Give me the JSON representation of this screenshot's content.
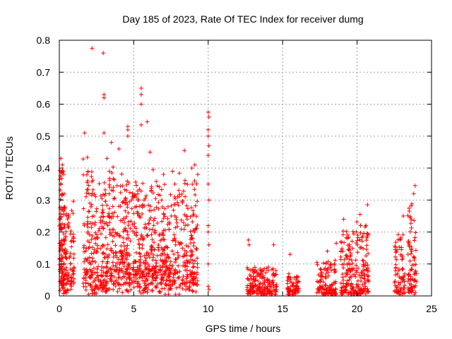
{
  "chart_data": {
    "type": "scatter",
    "title": "Day 185 of 2023, Rate Of TEC Index for receiver dumg",
    "xlabel": "GPS time / hours",
    "ylabel": "ROTI / TECUs",
    "xlim": [
      0,
      25
    ],
    "ylim": [
      0,
      0.8
    ],
    "xticks": [
      0,
      5,
      10,
      15,
      20,
      25
    ],
    "yticks": [
      0,
      0.1,
      0.2,
      0.3,
      0.4,
      0.5,
      0.6,
      0.7,
      0.8
    ],
    "xtick_labels": [
      "0",
      "5",
      "10",
      "15",
      "20",
      "25"
    ],
    "ytick_labels": [
      "0",
      "0.1",
      "0.2",
      "0.3",
      "0.4",
      "0.5",
      "0.6",
      "0.7",
      "0.8"
    ],
    "grid": true,
    "marker": "+",
    "color": "#ff0000",
    "outliers": [
      {
        "x": 2.2,
        "y": 0.775
      },
      {
        "x": 2.95,
        "y": 0.76
      },
      {
        "x": 3.0,
        "y": 0.63
      },
      {
        "x": 3.0,
        "y": 0.62
      },
      {
        "x": 5.5,
        "y": 0.65
      },
      {
        "x": 5.5,
        "y": 0.63
      },
      {
        "x": 5.5,
        "y": 0.6
      },
      {
        "x": 5.9,
        "y": 0.545
      },
      {
        "x": 5.5,
        "y": 0.535
      },
      {
        "x": 1.7,
        "y": 0.51
      },
      {
        "x": 3.0,
        "y": 0.51
      },
      {
        "x": 4.6,
        "y": 0.53
      },
      {
        "x": 4.6,
        "y": 0.52
      },
      {
        "x": 4.6,
        "y": 0.5
      },
      {
        "x": 3.5,
        "y": 0.48
      },
      {
        "x": 4.0,
        "y": 0.46
      },
      {
        "x": 8.4,
        "y": 0.455
      },
      {
        "x": 6.1,
        "y": 0.45
      },
      {
        "x": 10.0,
        "y": 0.575
      },
      {
        "x": 10.05,
        "y": 0.56
      },
      {
        "x": 10.0,
        "y": 0.52
      },
      {
        "x": 10.0,
        "y": 0.5
      },
      {
        "x": 10.05,
        "y": 0.47
      },
      {
        "x": 10.0,
        "y": 0.44
      },
      {
        "x": 10.0,
        "y": 0.35
      },
      {
        "x": 10.05,
        "y": 0.3
      },
      {
        "x": 10.0,
        "y": 0.22
      },
      {
        "x": 10.0,
        "y": 0.2
      },
      {
        "x": 10.05,
        "y": 0.16
      },
      {
        "x": 10.0,
        "y": 0.1
      },
      {
        "x": 10.0,
        "y": 0.03
      },
      {
        "x": 10.05,
        "y": 0.02
      },
      {
        "x": 0.1,
        "y": 0.43
      },
      {
        "x": 0.2,
        "y": 0.41
      },
      {
        "x": 0.3,
        "y": 0.38
      },
      {
        "x": 12.7,
        "y": 0.175
      },
      {
        "x": 12.75,
        "y": 0.16
      },
      {
        "x": 14.4,
        "y": 0.16
      },
      {
        "x": 15.5,
        "y": 0.13
      },
      {
        "x": 18.0,
        "y": 0.14
      },
      {
        "x": 18.6,
        "y": 0.165
      },
      {
        "x": 19.1,
        "y": 0.24
      },
      {
        "x": 20.7,
        "y": 0.285
      },
      {
        "x": 20.2,
        "y": 0.255
      },
      {
        "x": 20.6,
        "y": 0.22
      },
      {
        "x": 23.1,
        "y": 0.25
      },
      {
        "x": 23.9,
        "y": 0.345
      },
      {
        "x": 23.8,
        "y": 0.32
      },
      {
        "x": 3.2,
        "y": 0.43
      },
      {
        "x": 7.0,
        "y": 0.38
      },
      {
        "x": 7.6,
        "y": 0.39
      },
      {
        "x": 8.9,
        "y": 0.4
      },
      {
        "x": 9.1,
        "y": 0.41
      },
      {
        "x": 6.3,
        "y": 0.395
      }
    ],
    "clusters": [
      {
        "x_range": [
          0.0,
          0.35
        ],
        "y_base": 0.05,
        "y_spread": 0.35,
        "count": 110
      },
      {
        "x_range": [
          0.35,
          1.0
        ],
        "y_base": 0.06,
        "y_spread": 0.22,
        "count": 90
      },
      {
        "x_range": [
          1.6,
          2.2
        ],
        "y_base": 0.05,
        "y_spread": 0.38,
        "count": 90
      },
      {
        "x_range": [
          2.2,
          3.2
        ],
        "y_base": 0.04,
        "y_spread": 0.32,
        "count": 140
      },
      {
        "x_range": [
          3.2,
          4.4
        ],
        "y_base": 0.06,
        "y_spread": 0.34,
        "count": 160
      },
      {
        "x_range": [
          4.4,
          5.4
        ],
        "y_base": 0.05,
        "y_spread": 0.32,
        "count": 150
      },
      {
        "x_range": [
          5.4,
          6.6
        ],
        "y_base": 0.06,
        "y_spread": 0.3,
        "count": 170
      },
      {
        "x_range": [
          6.6,
          8.0
        ],
        "y_base": 0.05,
        "y_spread": 0.3,
        "count": 180
      },
      {
        "x_range": [
          8.0,
          9.3
        ],
        "y_base": 0.03,
        "y_spread": 0.35,
        "count": 160
      },
      {
        "x_range": [
          12.6,
          14.6
        ],
        "y_base": 0.01,
        "y_spread": 0.08,
        "count": 180
      },
      {
        "x_range": [
          15.3,
          16.1
        ],
        "y_base": 0.01,
        "y_spread": 0.06,
        "count": 70
      },
      {
        "x_range": [
          17.3,
          18.6
        ],
        "y_base": 0.01,
        "y_spread": 0.1,
        "count": 120
      },
      {
        "x_range": [
          18.9,
          19.7
        ],
        "y_base": 0.01,
        "y_spread": 0.2,
        "count": 100
      },
      {
        "x_range": [
          19.7,
          20.8
        ],
        "y_base": 0.01,
        "y_spread": 0.22,
        "count": 120
      },
      {
        "x_range": [
          22.5,
          23.2
        ],
        "y_base": 0.01,
        "y_spread": 0.2,
        "count": 80
      },
      {
        "x_range": [
          23.4,
          24.0
        ],
        "y_base": 0.01,
        "y_spread": 0.28,
        "count": 80
      }
    ]
  }
}
